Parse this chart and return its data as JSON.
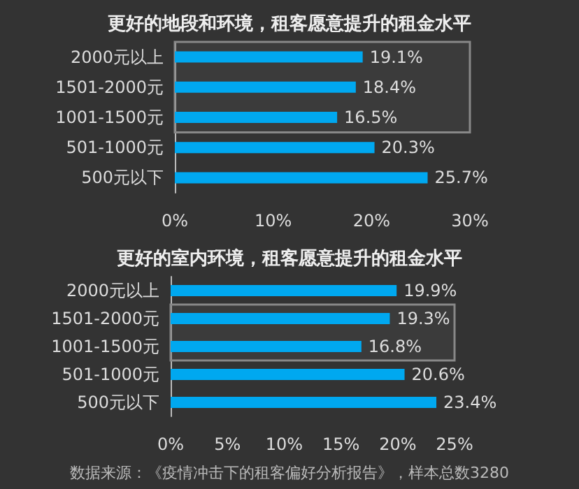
{
  "chart_data": [
    {
      "type": "bar",
      "orientation": "horizontal",
      "title": "更好的地段和环境，租客愿意提升的租金水平",
      "categories": [
        "2000元以上",
        "1501-2000元",
        "1001-1500元",
        "501-1000元",
        "500元以下"
      ],
      "values": [
        19.1,
        18.4,
        16.5,
        20.3,
        25.7
      ],
      "color": "#00a8f0",
      "value_labels": [
        "19.1%",
        "18.4%",
        "16.5%",
        "20.3%",
        "25.7%"
      ],
      "xlim": [
        0,
        30
      ],
      "xticks": [
        {
          "value": 0,
          "label": "0%"
        },
        {
          "value": 10,
          "label": "10%"
        },
        {
          "value": 20,
          "label": "20%"
        },
        {
          "value": 30,
          "label": "30%"
        }
      ],
      "bands": [
        {
          "axis": "y",
          "from": "1001-1500元",
          "to": "2000元以上",
          "color": "#888888"
        }
      ],
      "grid": false
    },
    {
      "type": "bar",
      "orientation": "horizontal",
      "title": "更好的室内环境，租客愿意提升的租金水平",
      "categories": [
        "2000元以上",
        "1501-2000元",
        "1001-1500元",
        "501-1000元",
        "500元以下"
      ],
      "values": [
        19.9,
        19.3,
        16.8,
        20.6,
        23.4
      ],
      "color": "#00a8f0",
      "value_labels": [
        "19.9%",
        "19.3%",
        "16.8%",
        "20.6%",
        "23.4%"
      ],
      "xlim": [
        0,
        25
      ],
      "xticks": [
        {
          "value": 0,
          "label": "0%"
        },
        {
          "value": 5,
          "label": "5%"
        },
        {
          "value": 10,
          "label": "10%"
        },
        {
          "value": 15,
          "label": "15%"
        },
        {
          "value": 20,
          "label": "20%"
        },
        {
          "value": 25,
          "label": "25%"
        }
      ],
      "bands": [
        {
          "axis": "y",
          "from": "1001-1500元",
          "to": "1501-2000元",
          "color": "#888888"
        }
      ],
      "annotations": [
        "数据来源：《疫情冲击下的租客偏好分析报告》，样本总数3280"
      ],
      "grid": false
    }
  ]
}
